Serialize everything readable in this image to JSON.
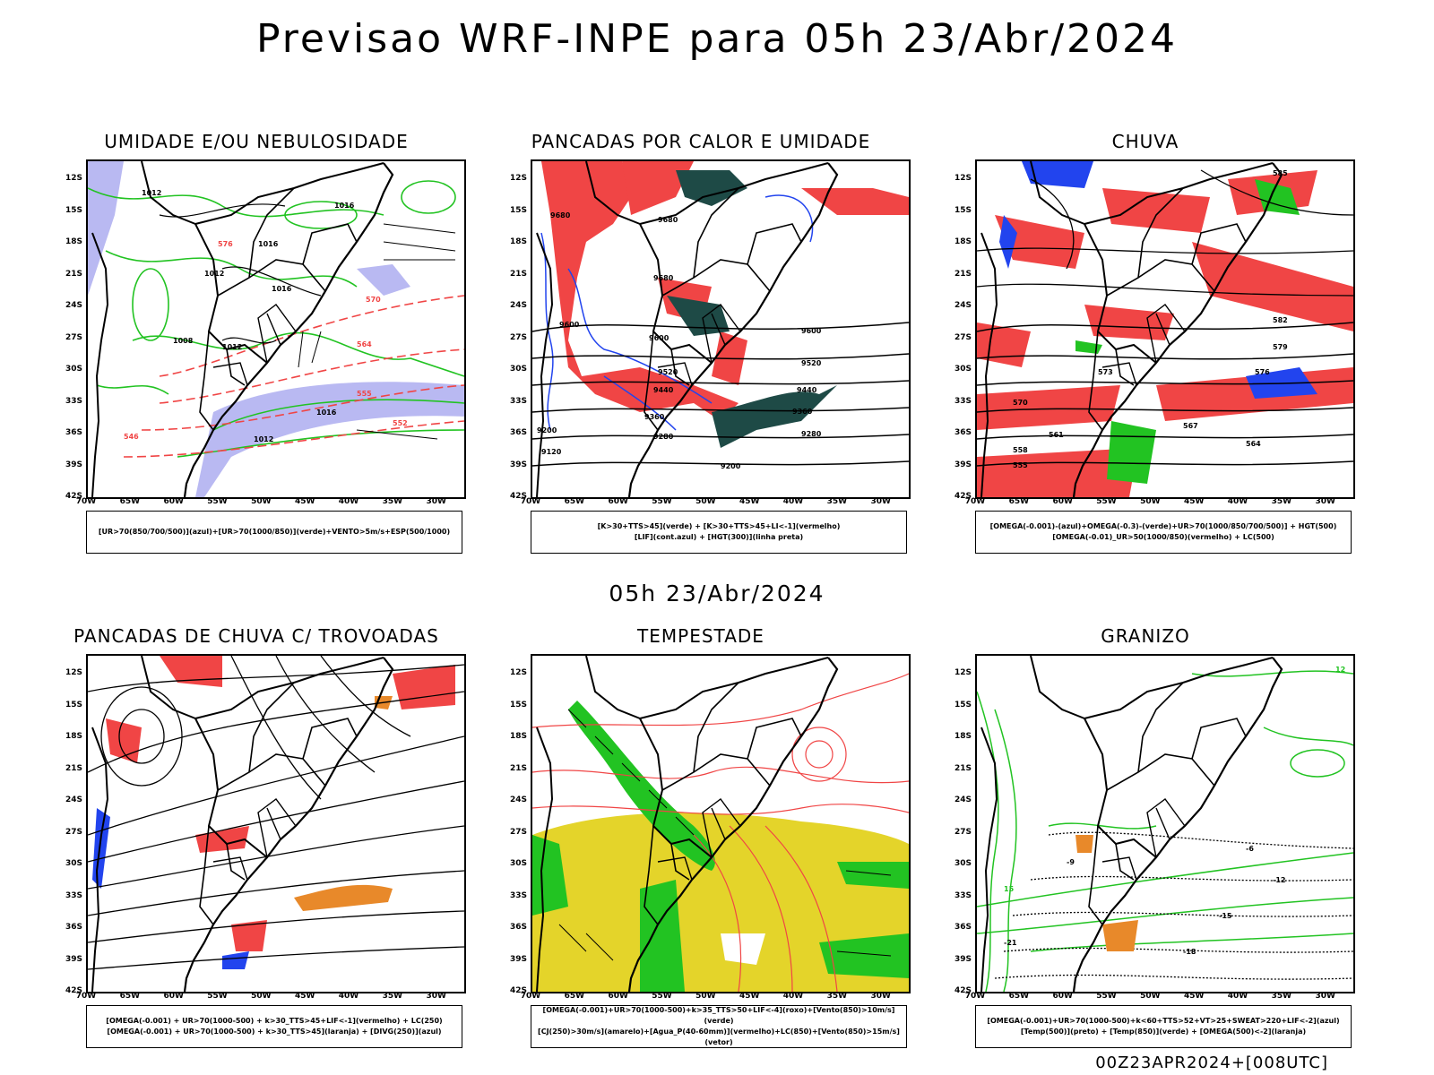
{
  "main_title": "Previsao WRF-INPE  para 05h 23/Abr/2024",
  "mid_title": "05h 23/Abr/2024",
  "footer": "00Z23APR2024+[008UTC]",
  "lat_labels": [
    "12S",
    "15S",
    "18S",
    "21S",
    "24S",
    "27S",
    "30S",
    "33S",
    "36S",
    "39S",
    "42S"
  ],
  "lon_labels": [
    "70W",
    "65W",
    "60W",
    "55W",
    "50W",
    "45W",
    "40W",
    "35W",
    "30W"
  ],
  "panels": [
    {
      "title": "UMIDADE E/OU NEBULOSIDADE",
      "legend": [
        "[UR>70(850/700/500)](azul)+[UR>70(1000/850)](verde)+VENTO>5m/s+ESP(500/1000)"
      ]
    },
    {
      "title": "PANCADAS POR CALOR E UMIDADE",
      "legend": [
        "[K>30+TTS>45](verde) + [K>30+TTS>45+LI<-1](vermelho)",
        "[LIF](cont.azul) + [HGT(300)](linha preta)"
      ]
    },
    {
      "title": "CHUVA",
      "legend": [
        "[OMEGA(-0.001)-(azul)+OMEGA(-0.3)-(verde)+UR>70(1000/850/700/500)] + HGT(500)",
        "[OMEGA(-0.01)_UR>50(1000/850)(vermelho) + LC(500)"
      ]
    },
    {
      "title": "PANCADAS DE CHUVA C/ TROVOADAS",
      "legend": [
        "[OMEGA(-0.001) + UR>70(1000-500) + k>30_TTS>45+LIF<-1](vermelho) + LC(250)",
        "[OMEGA(-0.001) + UR>70(1000-500) + k>30_TTS>45](laranja) + [DIVG(250)](azul)"
      ]
    },
    {
      "title": "TEMPESTADE",
      "legend": [
        "[OMEGA(-0.001)+UR>70(1000-500)+k>35_TTS>50+LIF<-4](roxo)+[Vento(850)>10m/s](verde)",
        "[CJ(250)>30m/s](amarelo)+[Agua_P(40-60mm)](vermelho)+LC(850)+[Vento(850)>15m/s](vetor)"
      ]
    },
    {
      "title": "GRANIZO",
      "legend": [
        "[OMEGA(-0.001)+UR>70(1000-500)+k<60+TTS>52+VT>25+SWEAT>220+LIF<-2](azul)",
        "[Temp(500)](preto) + [Temp(850)](verde) + [OMEGA(500)<-2](laranja)"
      ]
    }
  ],
  "map_labels": {
    "p1": [
      "1012",
      "1016",
      "1016",
      "1012",
      "1016",
      "1008",
      "1012",
      "1016",
      "1012",
      "570",
      "576",
      "564",
      "555",
      "552",
      "546"
    ],
    "p2": [
      "9680",
      "9680",
      "9680",
      "9600",
      "9600",
      "9600",
      "9520",
      "9520",
      "9440",
      "9440",
      "9360",
      "9360",
      "9280",
      "9280",
      "9200",
      "9200",
      "9120"
    ],
    "p3": [
      "585",
      "582",
      "579",
      "576",
      "573",
      "570",
      "567",
      "564",
      "561",
      "558",
      "555"
    ],
    "p6": [
      "-6",
      "-9",
      "-12",
      "-15",
      "-18",
      "-21",
      "15",
      "12"
    ]
  },
  "colors": {
    "green": "#22c322",
    "red": "#f04545",
    "blue": "#2244ee",
    "lavender": "#b9b9f2",
    "teal": "#1e4a46",
    "yellow": "#e4d42a",
    "orange": "#e8892a",
    "salmon": "#f06060"
  }
}
